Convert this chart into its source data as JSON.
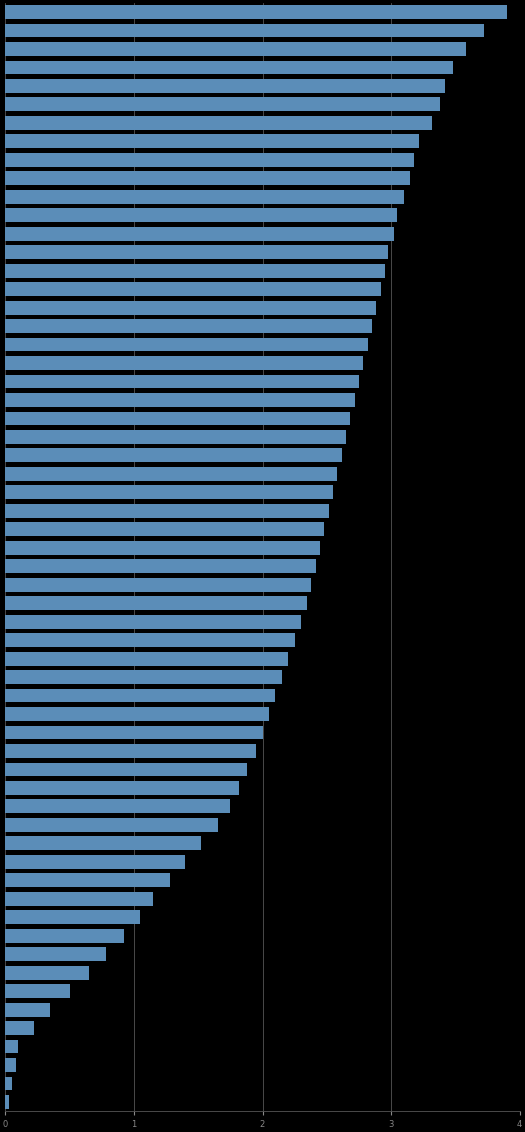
{
  "bar_color": "#5B8DB8",
  "background_color": "#000000",
  "plot_background": "#000000",
  "grid_color": "#555555",
  "values": [
    3.9,
    3.72,
    3.58,
    3.48,
    3.42,
    3.38,
    3.32,
    3.22,
    3.18,
    3.15,
    3.1,
    3.05,
    3.02,
    2.98,
    2.95,
    2.92,
    2.88,
    2.85,
    2.82,
    2.78,
    2.75,
    2.72,
    2.68,
    2.65,
    2.62,
    2.58,
    2.55,
    2.52,
    2.48,
    2.45,
    2.42,
    2.38,
    2.35,
    2.3,
    2.25,
    2.2,
    2.15,
    2.1,
    2.05,
    2.0,
    1.95,
    1.88,
    1.82,
    1.75,
    1.65,
    1.52,
    1.4,
    1.28,
    1.15,
    1.05,
    0.92,
    0.78,
    0.65,
    0.5,
    0.35,
    0.22,
    0.1,
    0.08,
    0.05,
    0.03
  ],
  "xlim": [
    0,
    4.0
  ],
  "figsize": [
    5.25,
    11.32
  ],
  "dpi": 100
}
